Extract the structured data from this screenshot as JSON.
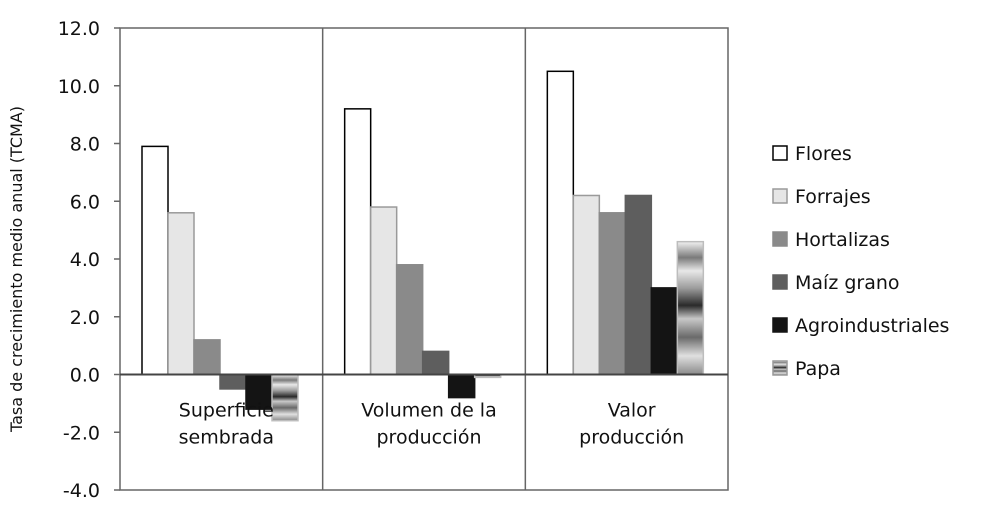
{
  "chart_data": {
    "type": "bar",
    "title": "",
    "xlabel": "",
    "ylabel": "Tasa de crecimiento medio anual (TCMA)",
    "ylim": [
      -4.0,
      12.0
    ],
    "yticks": [
      "12.0",
      "10.0",
      "8.0",
      "6.0",
      "4.0",
      "2.0",
      "0.0",
      "-2.0",
      "-4.0"
    ],
    "grid": "vertical separators",
    "legend_position": "right",
    "categories": [
      [
        "Superficie",
        "sembrada"
      ],
      [
        "Volumen de la",
        "producción"
      ],
      [
        "Valor",
        "producción"
      ]
    ],
    "series": [
      {
        "name": "Flores",
        "values": [
          7.9,
          9.2,
          10.5
        ],
        "fill": "#ffffff",
        "stroke": "#000000"
      },
      {
        "name": "Forrajes",
        "values": [
          5.6,
          5.8,
          6.2
        ],
        "fill": "#e6e6e6",
        "stroke": "#9a9a9a"
      },
      {
        "name": "Hortalizas",
        "values": [
          1.2,
          3.8,
          5.6
        ],
        "fill": "#8a8a8a",
        "stroke": "#8a8a8a"
      },
      {
        "name": "Maíz grano",
        "values": [
          -0.5,
          0.8,
          6.2
        ],
        "fill": "#5e5e5e",
        "stroke": "#5e5e5e"
      },
      {
        "name": "Agroindustriales",
        "values": [
          -1.2,
          -0.8,
          3.0
        ],
        "fill": "#141414",
        "stroke": "#141414"
      },
      {
        "name": "Papa",
        "values": [
          -1.6,
          -0.1,
          4.6
        ],
        "fill": "url(#papaGrad)",
        "stroke": "#bdbdbd"
      }
    ]
  }
}
